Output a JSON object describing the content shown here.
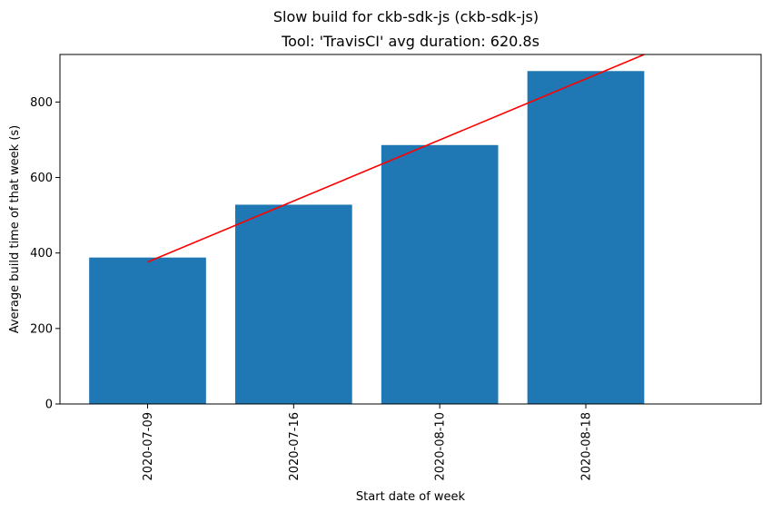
{
  "figure": {
    "suptitle": "Slow build for ckb-sdk-js (ckb-sdk-js)"
  },
  "chart_data": {
    "type": "bar",
    "title": "Tool: 'TravisCI' avg duration: 620.8s",
    "xlabel": "Start date of week",
    "ylabel": "Average build time of that week (s)",
    "categories": [
      "2020-07-09",
      "2020-07-16",
      "2020-08-10",
      "2020-08-18"
    ],
    "values": [
      388,
      528,
      686,
      882
    ],
    "bar_color": "#1f77b4",
    "ylim": [
      0,
      926
    ],
    "xlim": [
      -0.6,
      4.2
    ],
    "yticks": [
      0,
      200,
      400,
      600,
      800
    ],
    "x_tick_rotation": "vertical",
    "grid": false,
    "trend_line": {
      "color": "#ff0000",
      "x": [
        0,
        3.4
      ],
      "y": [
        376,
        926
      ]
    }
  }
}
